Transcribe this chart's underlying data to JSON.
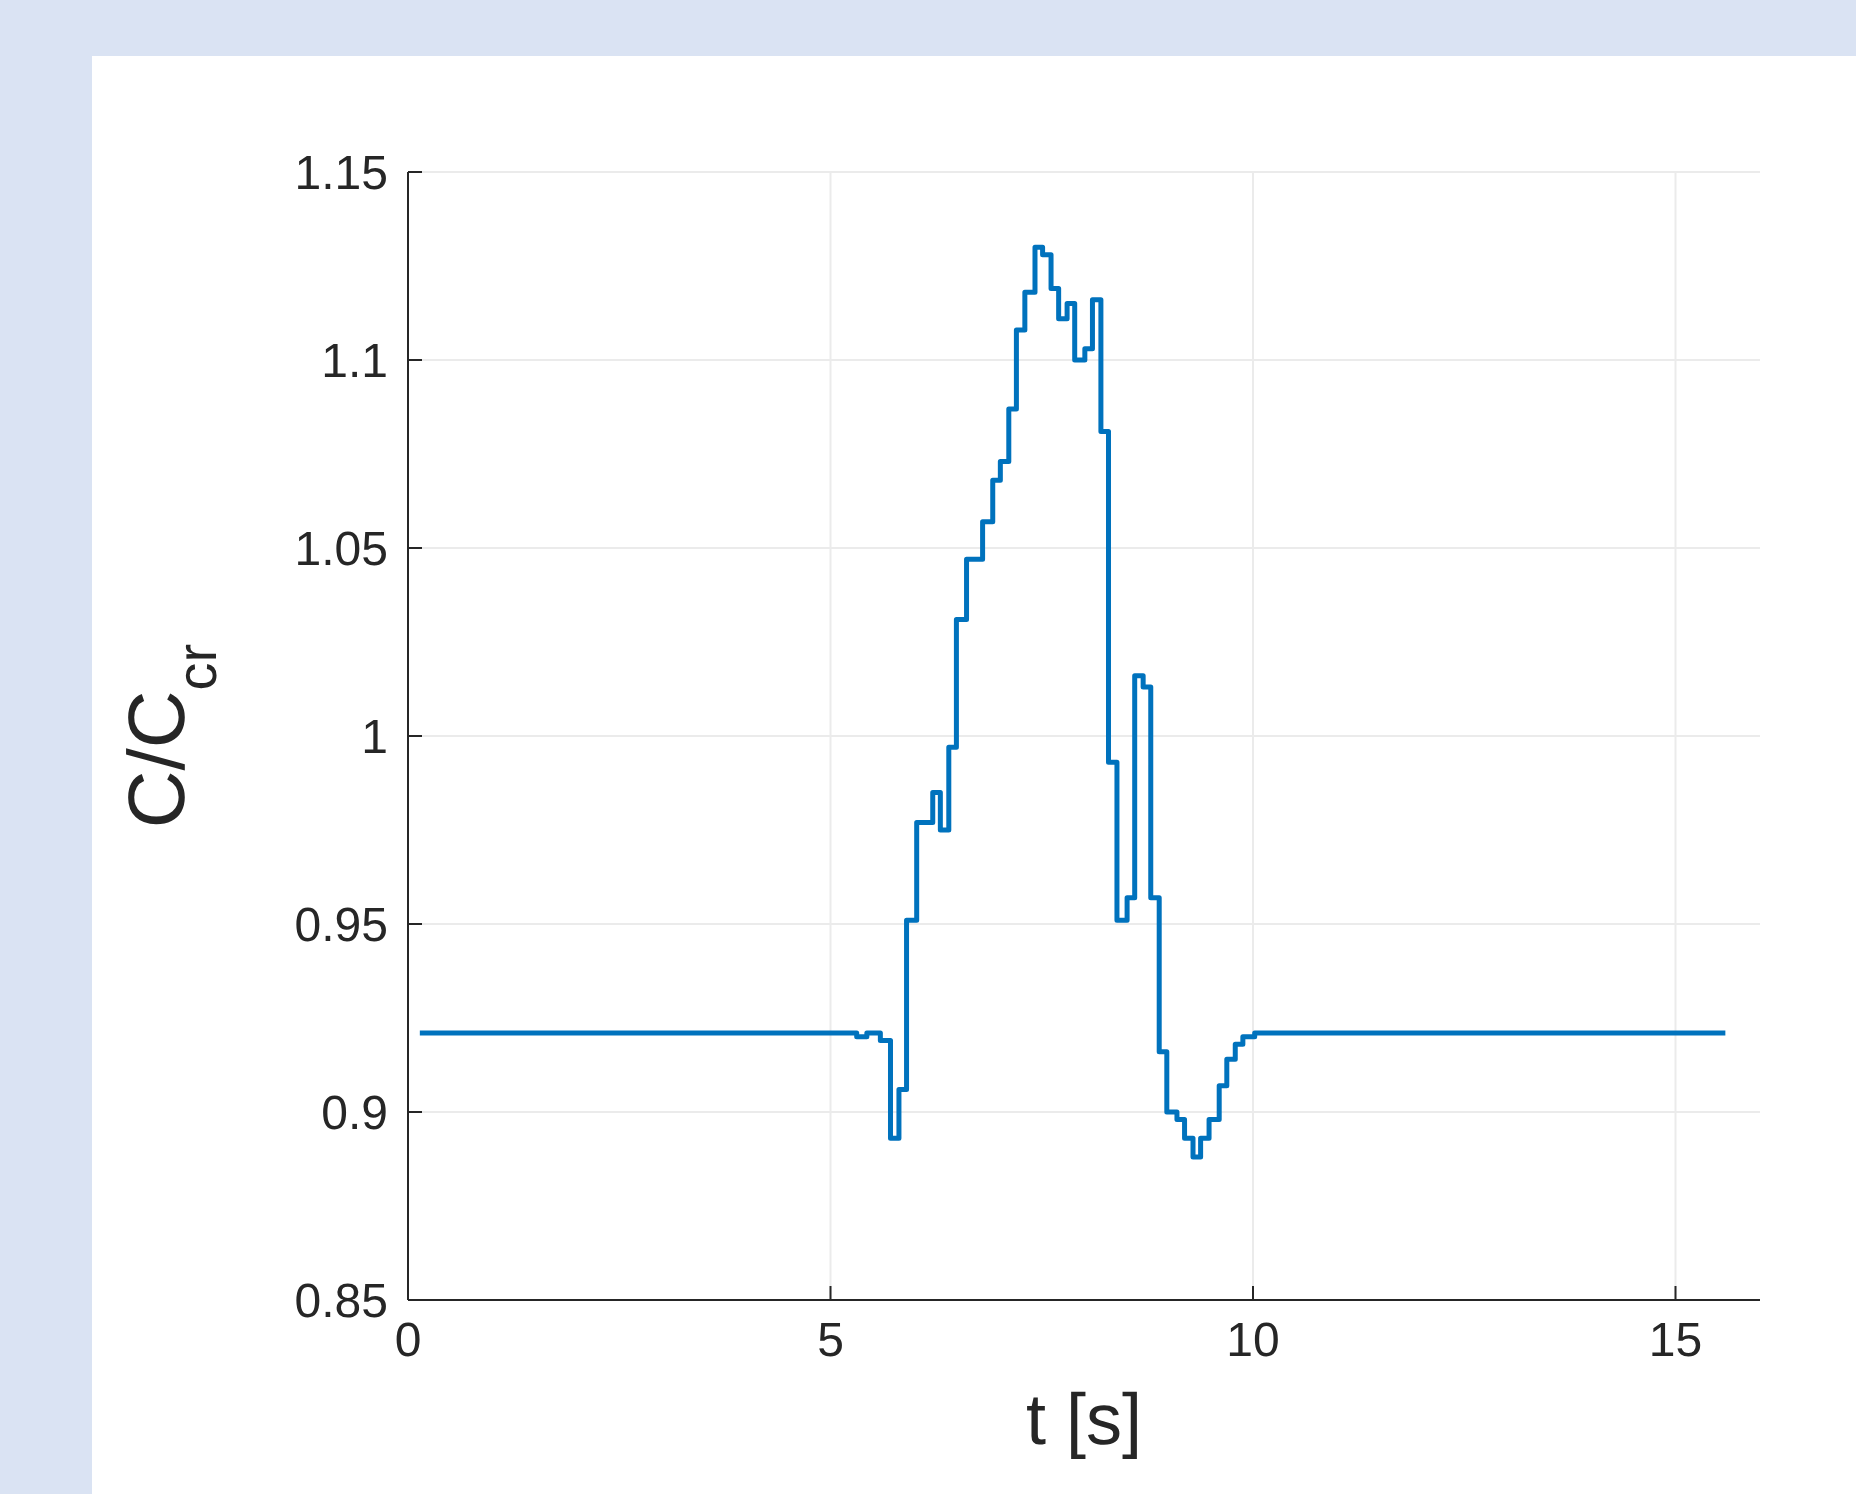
{
  "chart_data": {
    "type": "step",
    "xlabel": "t [s]",
    "ylabel": "C/C$_{cr}$",
    "xlim": [
      0,
      16
    ],
    "ylim": [
      0.85,
      1.15
    ],
    "xticks": [
      0,
      5,
      10,
      15
    ],
    "yticks": [
      0.85,
      0.9,
      0.95,
      1,
      1.05,
      1.1,
      1.15
    ],
    "grid": true,
    "line_style": "solid",
    "marker": "none",
    "series": [
      {
        "color": "#0072bd",
        "x": [
          0.14,
          5.31,
          5.43,
          5.59,
          5.71,
          5.81,
          5.9,
          6.02,
          6.21,
          6.3,
          6.4,
          6.49,
          6.61,
          6.8,
          6.92,
          7.01,
          7.11,
          7.2,
          7.3,
          7.42,
          7.51,
          7.61,
          7.7,
          7.8,
          7.89,
          8.01,
          8.1,
          8.2,
          8.29,
          8.39,
          8.51,
          8.6,
          8.7,
          8.79,
          8.89,
          8.98,
          9.1,
          9.19,
          9.29,
          9.38,
          9.48,
          9.6,
          9.69,
          9.79,
          9.88,
          10.02,
          15.59
        ],
        "values": [
          0.921,
          0.92,
          0.921,
          0.919,
          0.893,
          0.906,
          0.951,
          0.977,
          0.985,
          0.975,
          0.997,
          1.031,
          1.047,
          1.057,
          1.068,
          1.073,
          1.087,
          1.108,
          1.118,
          1.13,
          1.128,
          1.119,
          1.111,
          1.115,
          1.1,
          1.103,
          1.116,
          1.081,
          0.993,
          0.951,
          0.957,
          1.016,
          1.013,
          0.957,
          0.916,
          0.9,
          0.898,
          0.893,
          0.888,
          0.893,
          0.898,
          0.907,
          0.914,
          0.918,
          0.92,
          0.921,
          0.921
        ]
      }
    ]
  }
}
